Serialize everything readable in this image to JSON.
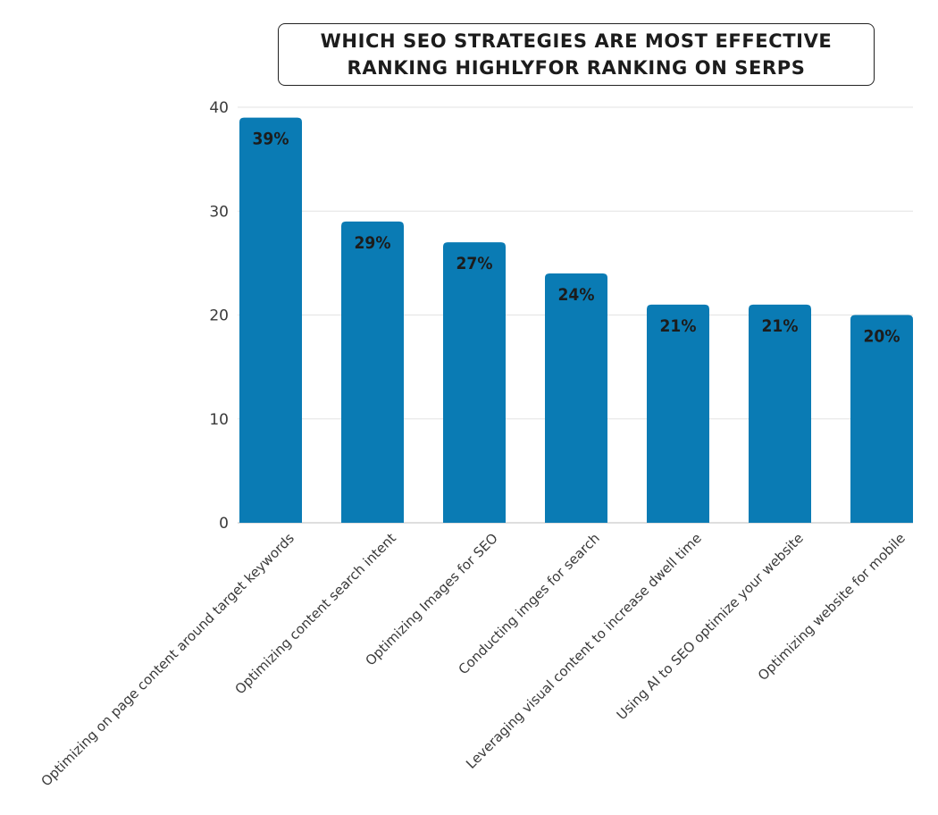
{
  "chart_data": {
    "type": "bar",
    "title_lines": [
      "WHICH SEO STRATEGIES ARE MOST EFFECTIVE",
      "RANKING HIGHLYFOR RANKING ON SERPS"
    ],
    "categories": [
      "Optimizing on page content around target keywords",
      "Optimizing content search intent",
      "Optimizing Images for SEO",
      "Conducting imges for search",
      "Leveraging visual content to increase dwell time",
      "Using AI to SEO optimize your website",
      "Optimizing website for mobile"
    ],
    "values": [
      39,
      29,
      27,
      24,
      21,
      21,
      20
    ],
    "data_labels": [
      "39%",
      "29%",
      "27%",
      "24%",
      "21%",
      "21%",
      "20%"
    ],
    "yticks": [
      "0",
      "10",
      "20",
      "30",
      "40"
    ],
    "ylim": [
      0,
      40
    ],
    "grid": true,
    "bar_color": "#0a7bb4",
    "xlabel": "",
    "ylabel": ""
  }
}
